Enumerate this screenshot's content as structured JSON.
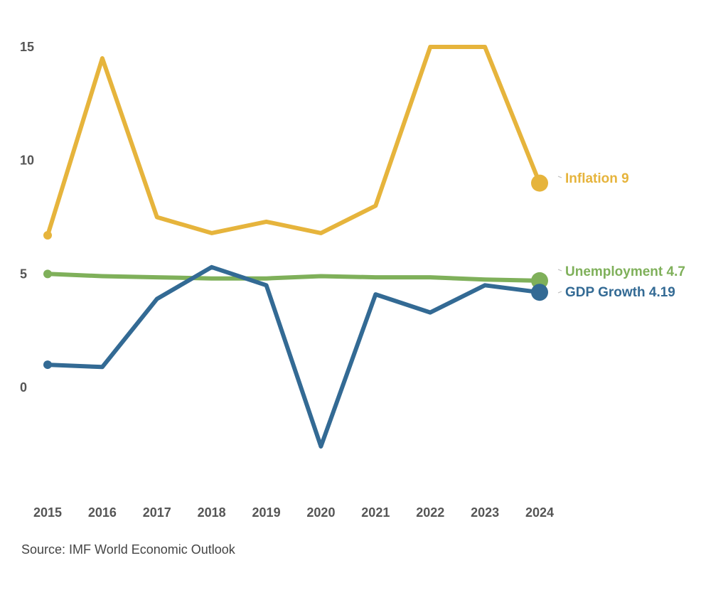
{
  "chart_data": {
    "type": "line",
    "x": [
      "2015",
      "2016",
      "2017",
      "2018",
      "2019",
      "2020",
      "2021",
      "2022",
      "2023",
      "2024"
    ],
    "yticks": [
      "0",
      "5",
      "10",
      "15"
    ],
    "ylim": [
      -4.5,
      16.5
    ],
    "grid": false,
    "legend": "end-of-line labels",
    "series": [
      {
        "name": "Inflation",
        "color": "#e6b43c",
        "values": [
          6.7,
          14.5,
          7.5,
          6.8,
          7.3,
          6.8,
          8.0,
          15.0,
          15.0,
          9.0
        ],
        "end_value": "9"
      },
      {
        "name": "Unemployment",
        "color": "#7fb05a",
        "values": [
          5.0,
          4.9,
          4.85,
          4.8,
          4.8,
          4.9,
          4.85,
          4.85,
          4.75,
          4.7
        ],
        "end_value": "4.7"
      },
      {
        "name": "GDP Growth",
        "color": "#336a94",
        "values": [
          1.0,
          0.9,
          3.9,
          5.3,
          4.5,
          -2.6,
          4.1,
          3.3,
          4.5,
          4.19
        ],
        "end_value": "4.19"
      }
    ]
  },
  "source": "Source: IMF World Economic Outlook"
}
